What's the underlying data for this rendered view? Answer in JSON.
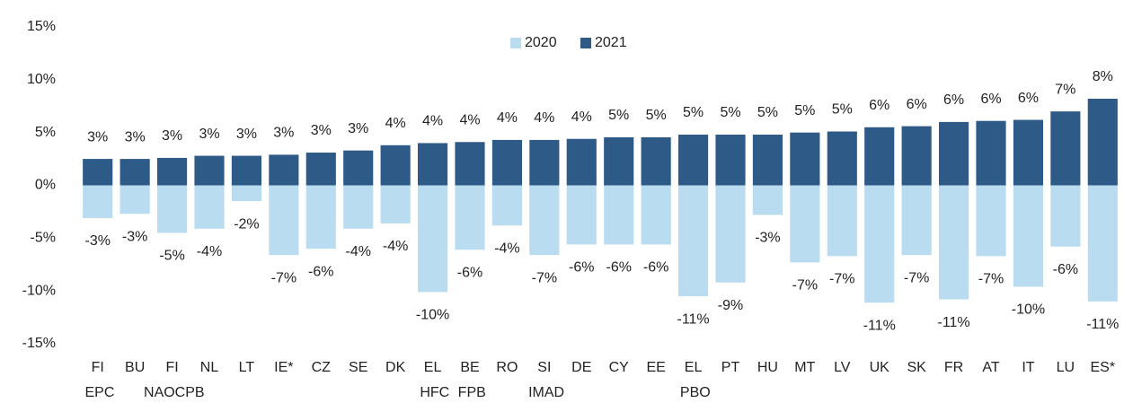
{
  "chart_data": {
    "type": "bar",
    "categories": [
      "FI EPC",
      "BU",
      "FI NAOCPB",
      "NL",
      "LT",
      "IE*",
      "CZ",
      "SE",
      "DK",
      "EL HFC",
      "BE FPB",
      "RO",
      "SI IMAD",
      "DE",
      "CY",
      "EE",
      "EL PBO",
      "PT",
      "HU",
      "MT",
      "LV",
      "UK",
      "SK",
      "FR",
      "AT",
      "IT",
      "LU",
      "ES*"
    ],
    "series": [
      {
        "name": "2020",
        "color": "#b9dcf0",
        "values": [
          -3.1,
          -2.7,
          -4.5,
          -4.1,
          -1.5,
          -6.6,
          -6.0,
          -4.1,
          -3.6,
          -10.1,
          -6.1,
          -3.8,
          -6.6,
          -5.6,
          -5.6,
          -5.6,
          -10.5,
          -9.2,
          -2.8,
          -7.3,
          -6.7,
          -11.1,
          -6.6,
          -10.8,
          -6.7,
          -9.6,
          -5.8,
          -11.0
        ],
        "value_labels": [
          "-3%",
          "-3%",
          "-5%",
          "-4%",
          "-2%",
          "-7%",
          "-6%",
          "-4%",
          "-4%",
          "-10%",
          "-6%",
          "-4%",
          "-7%",
          "-6%",
          "-6%",
          "-6%",
          "-11%",
          "-9%",
          "-3%",
          "-7%",
          "-7%",
          "-11%",
          "-7%",
          "-11%",
          "-7%",
          "-10%",
          "-6%",
          "-11%"
        ]
      },
      {
        "name": "2021",
        "color": "#2e5a87",
        "values": [
          2.5,
          2.5,
          2.6,
          2.8,
          2.8,
          2.9,
          3.1,
          3.3,
          3.8,
          4.0,
          4.1,
          4.3,
          4.3,
          4.4,
          4.55,
          4.55,
          4.8,
          4.8,
          4.8,
          5.0,
          5.1,
          5.5,
          5.6,
          6.0,
          6.1,
          6.2,
          7.0,
          8.2
        ],
        "value_labels": [
          "3%",
          "3%",
          "3%",
          "3%",
          "3%",
          "3%",
          "3%",
          "3%",
          "4%",
          "4%",
          "4%",
          "4%",
          "4%",
          "4%",
          "5%",
          "5%",
          "5%",
          "5%",
          "5%",
          "5%",
          "5%",
          "6%",
          "6%",
          "6%",
          "6%",
          "6%",
          "7%",
          "8%"
        ]
      }
    ],
    "ylim": [
      -15,
      15
    ],
    "yticks": [
      {
        "value": -15,
        "label": "-15%"
      },
      {
        "value": -10,
        "label": "-10%"
      },
      {
        "value": -5,
        "label": "-5%"
      },
      {
        "value": 0,
        "label": "0%"
      },
      {
        "value": 5,
        "label": "5%"
      },
      {
        "value": 10,
        "label": "10%"
      },
      {
        "value": 15,
        "label": "15%"
      }
    ],
    "grid": false,
    "legend": "top"
  }
}
